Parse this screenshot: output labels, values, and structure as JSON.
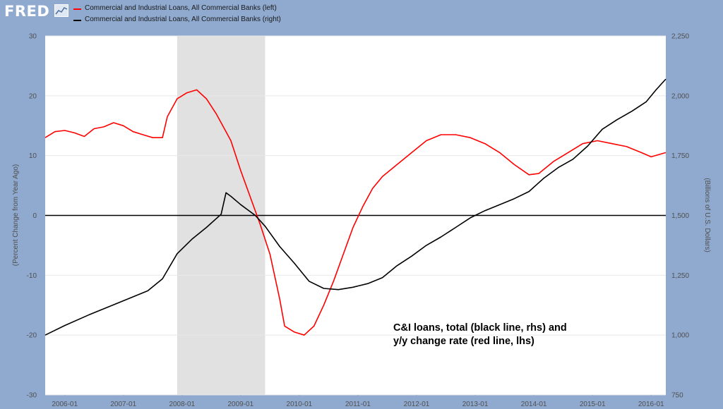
{
  "header": {
    "logo_text": "FRED",
    "logo_icon": "trend-chart-icon",
    "legend": [
      {
        "label": "Commercial and Industrial Loans, All Commercial Banks (left)",
        "color": "#ff0000"
      },
      {
        "label": "Commercial and Industrial Loans, All Commercial Banks (right)",
        "color": "#000000"
      }
    ]
  },
  "chart_data": {
    "type": "line",
    "left_axis": {
      "label": "(Percent Change from Year Ago)",
      "ticks": [
        "30",
        "20",
        "10",
        "0",
        "-10",
        "-20",
        "-30"
      ],
      "range": [
        -30,
        30
      ]
    },
    "right_axis": {
      "label": "(Billions of U.S. Dollars)",
      "ticks": [
        "2,250",
        "2,000",
        "1,750",
        "1,500",
        "1,250",
        "1,000",
        "750"
      ],
      "range": [
        750,
        2250
      ]
    },
    "x_ticks": [
      "2006-01",
      "2007-01",
      "2008-01",
      "2009-01",
      "2010-01",
      "2011-01",
      "2012-01",
      "2013-01",
      "2014-01",
      "2015-01",
      "2016-01"
    ],
    "x_range": [
      "2005-09",
      "2016-04"
    ],
    "recession": {
      "start": "2007-12",
      "end": "2009-06"
    },
    "zero_line": 0,
    "annotation": [
      "C&I loans, total (black line, rhs) and",
      "y/y change rate (red line, lhs)"
    ],
    "series": [
      {
        "name": "Commercial and Industrial Loans, All Commercial Banks (left)",
        "axis": "left",
        "color": "#ff0000",
        "points": [
          [
            "2005-09",
            13.0
          ],
          [
            "2005-11",
            14.0
          ],
          [
            "2006-01",
            14.2
          ],
          [
            "2006-03",
            13.8
          ],
          [
            "2006-05",
            13.2
          ],
          [
            "2006-07",
            14.5
          ],
          [
            "2006-09",
            14.8
          ],
          [
            "2006-11",
            15.5
          ],
          [
            "2007-01",
            15.0
          ],
          [
            "2007-03",
            14.0
          ],
          [
            "2007-05",
            13.5
          ],
          [
            "2007-07",
            13.0
          ],
          [
            "2007-09",
            13.0
          ],
          [
            "2007-10",
            16.5
          ],
          [
            "2007-12",
            19.5
          ],
          [
            "2008-02",
            20.5
          ],
          [
            "2008-04",
            21.0
          ],
          [
            "2008-06",
            19.5
          ],
          [
            "2008-08",
            17.0
          ],
          [
            "2008-10",
            14.0
          ],
          [
            "2008-11",
            12.5
          ],
          [
            "2009-01",
            7.5
          ],
          [
            "2009-03",
            3.0
          ],
          [
            "2009-05",
            -1.5
          ],
          [
            "2009-07",
            -6.5
          ],
          [
            "2009-09",
            -14.0
          ],
          [
            "2009-10",
            -18.5
          ],
          [
            "2009-12",
            -19.5
          ],
          [
            "2010-02",
            -20.0
          ],
          [
            "2010-04",
            -18.5
          ],
          [
            "2010-06",
            -15.0
          ],
          [
            "2010-08",
            -11.0
          ],
          [
            "2010-10",
            -6.5
          ],
          [
            "2010-12",
            -2.0
          ],
          [
            "2011-02",
            1.5
          ],
          [
            "2011-04",
            4.5
          ],
          [
            "2011-06",
            6.5
          ],
          [
            "2011-09",
            8.5
          ],
          [
            "2011-12",
            10.5
          ],
          [
            "2012-03",
            12.5
          ],
          [
            "2012-06",
            13.5
          ],
          [
            "2012-09",
            13.5
          ],
          [
            "2012-12",
            13.0
          ],
          [
            "2013-03",
            12.0
          ],
          [
            "2013-06",
            10.5
          ],
          [
            "2013-09",
            8.5
          ],
          [
            "2013-12",
            6.8
          ],
          [
            "2014-02",
            7.0
          ],
          [
            "2014-05",
            9.0
          ],
          [
            "2014-08",
            10.5
          ],
          [
            "2014-11",
            12.0
          ],
          [
            "2015-02",
            12.5
          ],
          [
            "2015-05",
            12.0
          ],
          [
            "2015-08",
            11.5
          ],
          [
            "2015-11",
            10.5
          ],
          [
            "2016-01",
            9.8
          ],
          [
            "2016-04",
            10.5
          ]
        ]
      },
      {
        "name": "Commercial and Industrial Loans, All Commercial Banks (right)",
        "axis": "right",
        "color": "#000000",
        "points": [
          [
            "2005-09",
            1000
          ],
          [
            "2006-01",
            1040
          ],
          [
            "2006-06",
            1085
          ],
          [
            "2006-12",
            1135
          ],
          [
            "2007-06",
            1185
          ],
          [
            "2007-09",
            1235
          ],
          [
            "2007-12",
            1340
          ],
          [
            "2008-03",
            1400
          ],
          [
            "2008-06",
            1450
          ],
          [
            "2008-09",
            1505
          ],
          [
            "2008-10",
            1595
          ],
          [
            "2008-11",
            1580
          ],
          [
            "2009-01",
            1545
          ],
          [
            "2009-04",
            1500
          ],
          [
            "2009-06",
            1455
          ],
          [
            "2009-09",
            1370
          ],
          [
            "2009-12",
            1300
          ],
          [
            "2010-03",
            1225
          ],
          [
            "2010-06",
            1195
          ],
          [
            "2010-09",
            1190
          ],
          [
            "2010-12",
            1200
          ],
          [
            "2011-03",
            1215
          ],
          [
            "2011-06",
            1240
          ],
          [
            "2011-09",
            1290
          ],
          [
            "2011-12",
            1330
          ],
          [
            "2012-03",
            1375
          ],
          [
            "2012-06",
            1410
          ],
          [
            "2012-09",
            1450
          ],
          [
            "2012-12",
            1490
          ],
          [
            "2013-03",
            1520
          ],
          [
            "2013-06",
            1545
          ],
          [
            "2013-09",
            1570
          ],
          [
            "2013-12",
            1600
          ],
          [
            "2014-03",
            1655
          ],
          [
            "2014-06",
            1700
          ],
          [
            "2014-09",
            1735
          ],
          [
            "2014-12",
            1790
          ],
          [
            "2015-03",
            1860
          ],
          [
            "2015-06",
            1900
          ],
          [
            "2015-09",
            1935
          ],
          [
            "2015-12",
            1975
          ],
          [
            "2016-02",
            2025
          ],
          [
            "2016-04",
            2070
          ]
        ]
      }
    ]
  }
}
